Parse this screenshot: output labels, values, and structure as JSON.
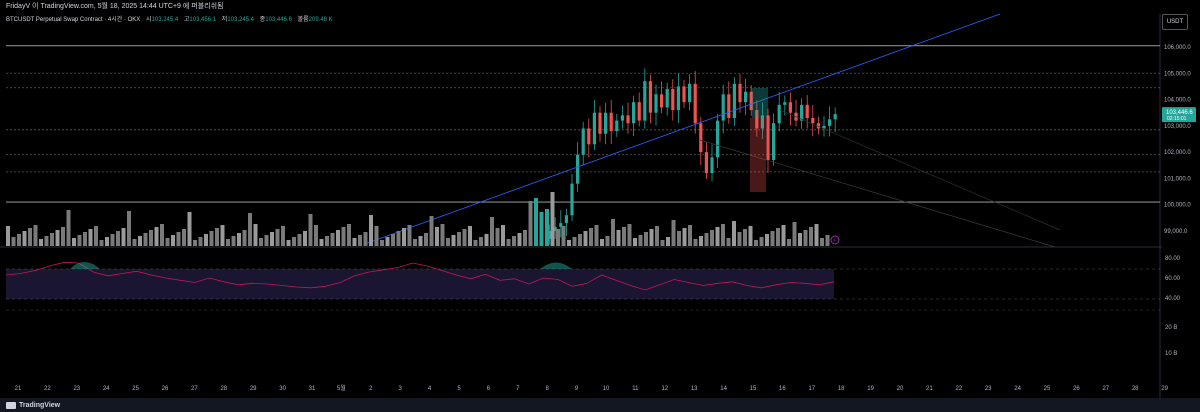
{
  "header": {
    "publish_line": "FridayV 이 TradingView.com, 5월 18, 2025 14:44 UTC+9 에 퍼블리쉬됨",
    "symbol": "BTCUSDT Perpetual Swap Contract · 4시간 · OKX",
    "ohlc": [
      {
        "key": "시",
        "value": "103,245.4"
      },
      {
        "key": "고",
        "value": "103,456.1"
      },
      {
        "key": "저",
        "value": "103,245.4"
      },
      {
        "key": "종",
        "value": "103,446.6"
      },
      {
        "key": "볼륨",
        "value": "209.48 K"
      }
    ],
    "currency_button": "USDT"
  },
  "price_badge": {
    "price": "103,446.6",
    "countdown": "02:15:01",
    "color": "#26a69a"
  },
  "colors": {
    "up": "#26a69a",
    "down": "#ef5350",
    "trendline": "#2962ff",
    "rsi_line": "#c2185b",
    "rsi_band": "#1a1530"
  },
  "rsi_labels": [
    "80.00",
    "60.00",
    "40.00",
    "20 B",
    "10 B"
  ],
  "indicator_badge_icon": "lightning-icon",
  "footer": {
    "brand": "TradingView"
  },
  "chart_data": {
    "type": "candlestick",
    "y_axis_labels": [
      "106,000.0",
      "105,000.0",
      "104,000.0",
      "103,000.0",
      "102,000.0",
      "101,000.0",
      "100,000.0",
      "99,000.0"
    ],
    "ylim": [
      98500,
      106500
    ],
    "x_axis_labels": [
      "21",
      "22",
      "23",
      "24",
      "25",
      "26",
      "27",
      "28",
      "29",
      "30",
      "31",
      "5월",
      "2",
      "3",
      "4",
      "5",
      "6",
      "7",
      "8",
      "9",
      "10",
      "11",
      "12",
      "13",
      "14",
      "15",
      "16",
      "17",
      "18",
      "19",
      "20",
      "21",
      "22",
      "23",
      "24",
      "25",
      "26",
      "27",
      "28",
      "29"
    ],
    "horizontal_levels": [
      {
        "price": 106050,
        "style": "solid"
      },
      {
        "price": 105000,
        "style": "dotted"
      },
      {
        "price": 104450,
        "style": "dotted"
      },
      {
        "price": 102850,
        "style": "dotted"
      },
      {
        "price": 101900,
        "style": "dotted"
      },
      {
        "price": 101250,
        "style": "dotted"
      },
      {
        "price": 100100,
        "style": "solid"
      }
    ],
    "candles_close": [
      99000,
      99150,
      99300,
      99600,
      100800,
      101900,
      102900,
      102300,
      103500,
      102700,
      103500,
      102800,
      103200,
      103400,
      103100,
      103900,
      103200,
      104700,
      103500,
      104200,
      103700,
      104400,
      103600,
      104500,
      103900,
      104600,
      103100,
      102000,
      101200,
      101800,
      103200,
      104200,
      103300,
      104600,
      103900,
      104300,
      103600,
      102900,
      103400,
      101700,
      103100,
      103800,
      103900,
      103500,
      103200,
      103800,
      103300,
      103100,
      102900,
      103000,
      103250,
      103446.6
    ],
    "rsi_values": [
      62,
      64,
      68,
      74,
      79,
      78,
      66,
      61,
      64,
      67,
      62,
      58,
      55,
      52,
      58,
      53,
      49,
      51,
      50,
      48,
      46,
      45,
      47,
      52,
      61,
      66,
      69,
      72,
      78,
      74,
      68,
      62,
      57,
      63,
      55,
      57,
      50,
      58,
      56,
      47,
      51,
      62,
      55,
      48,
      42,
      49,
      56,
      52,
      48,
      51,
      53,
      48,
      45,
      49,
      52,
      51,
      49,
      53
    ]
  }
}
